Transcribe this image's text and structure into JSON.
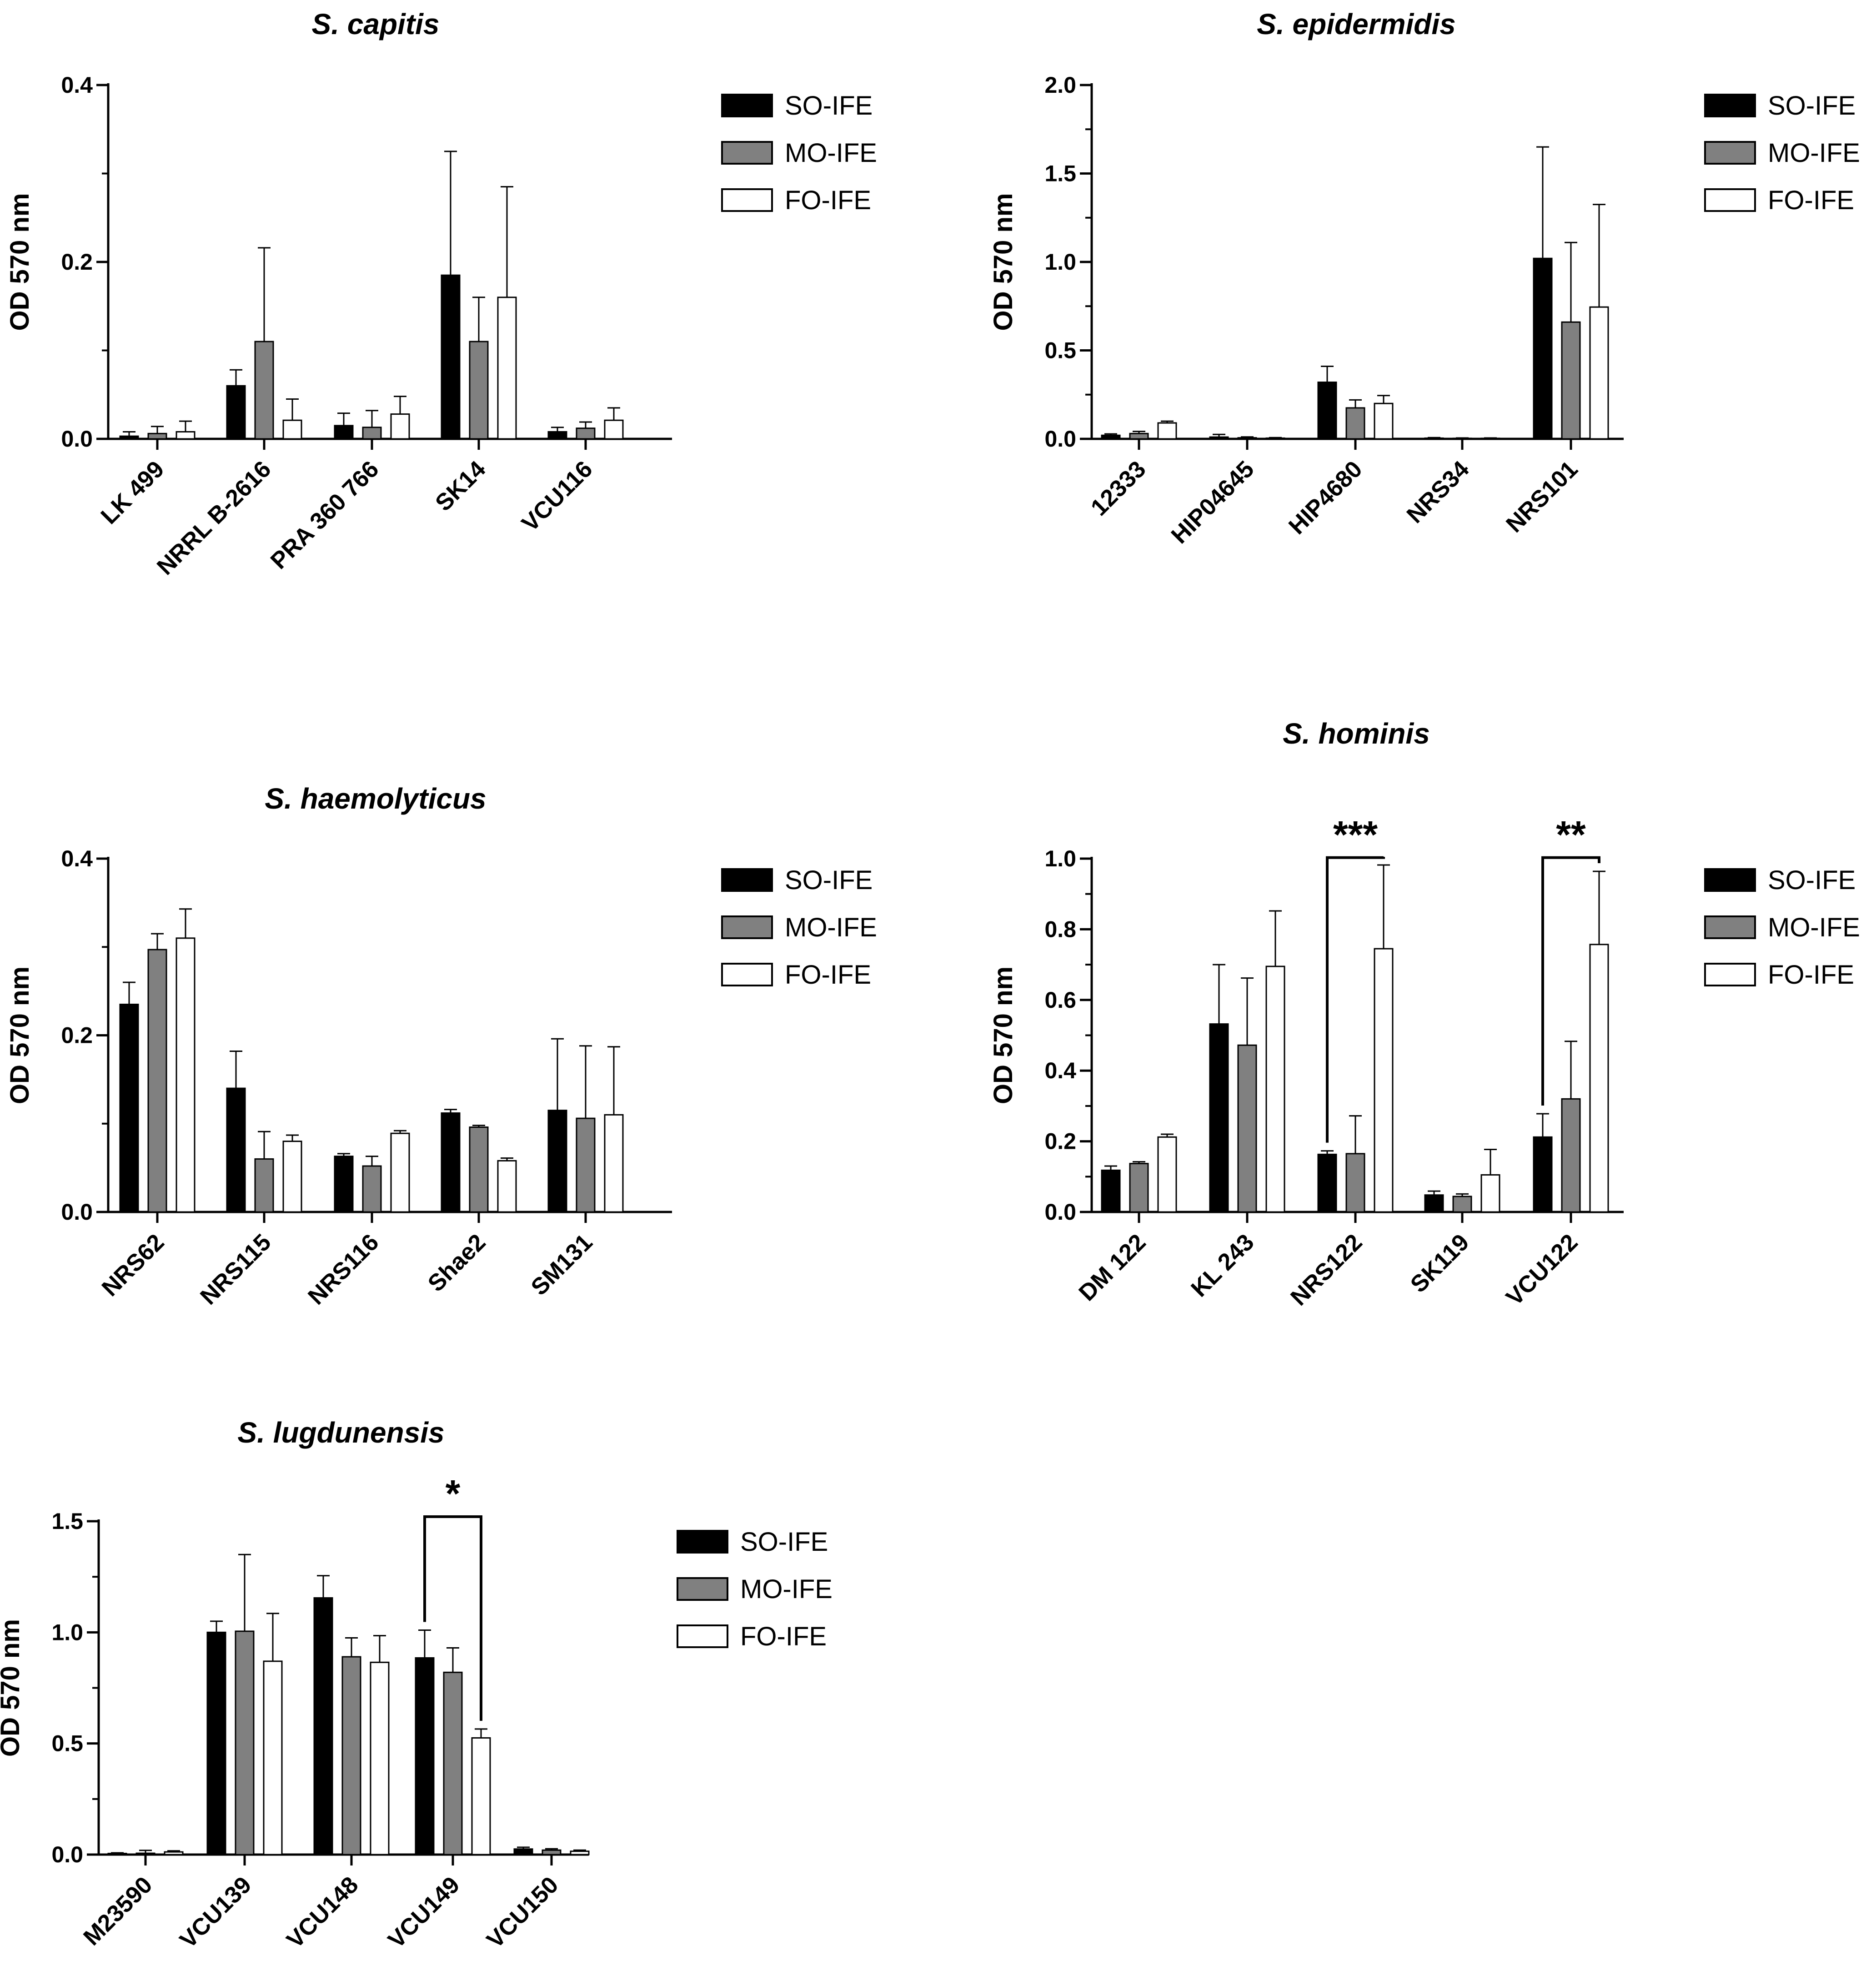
{
  "colors": {
    "SO-IFE": "#000000",
    "MO-IFE": "#808080",
    "FO-IFE": "#ffffff",
    "axis": "#000000"
  },
  "chart_data": [
    {
      "type": "bar",
      "title": "S. capitis",
      "ylabel": "OD 570 nm",
      "ylim": [
        0,
        0.4
      ],
      "yticks": [
        "0.0",
        "0.2",
        "0.4"
      ],
      "categories": [
        "LK 499",
        "NRRL B-2616",
        "PRA 360 766",
        "SK14",
        "VCU116"
      ],
      "series": [
        {
          "name": "SO-IFE",
          "values": [
            0.003,
            0.06,
            0.015,
            0.185,
            0.008
          ],
          "errors": [
            0.005,
            0.018,
            0.014,
            0.14,
            0.005
          ]
        },
        {
          "name": "MO-IFE",
          "values": [
            0.006,
            0.11,
            0.013,
            0.11,
            0.012
          ],
          "errors": [
            0.008,
            0.106,
            0.019,
            0.05,
            0.007
          ]
        },
        {
          "name": "FO-IFE",
          "values": [
            0.008,
            0.021,
            0.028,
            0.16,
            0.021
          ],
          "errors": [
            0.012,
            0.024,
            0.02,
            0.125,
            0.014
          ]
        }
      ],
      "significance": []
    },
    {
      "type": "bar",
      "title": "S. epidermidis",
      "ylabel": "OD 570 nm",
      "ylim": [
        0,
        2.0
      ],
      "yticks": [
        "0.0",
        "0.5",
        "1.0",
        "1.5",
        "2.0"
      ],
      "categories": [
        "12333",
        "HIP04645",
        "HIP4680",
        "NRS34",
        "NRS101"
      ],
      "series": [
        {
          "name": "SO-IFE",
          "values": [
            0.02,
            0.01,
            0.32,
            0.004,
            1.02
          ],
          "errors": [
            0.008,
            0.015,
            0.09,
            0.003,
            0.63
          ]
        },
        {
          "name": "MO-IFE",
          "values": [
            0.03,
            0.006,
            0.175,
            0.003,
            0.66
          ],
          "errors": [
            0.012,
            0.005,
            0.045,
            0.002,
            0.45
          ]
        },
        {
          "name": "FO-IFE",
          "values": [
            0.09,
            0.004,
            0.2,
            0.003,
            0.745
          ],
          "errors": [
            0.01,
            0.003,
            0.045,
            0.002,
            0.58
          ]
        }
      ],
      "significance": []
    },
    {
      "type": "bar",
      "title": "S. haemolyticus",
      "ylabel": "OD 570 nm",
      "ylim": [
        0,
        0.4
      ],
      "yticks": [
        "0.0",
        "0.2",
        "0.4"
      ],
      "categories": [
        "NRS62",
        "NRS115",
        "NRS116",
        "Shae2",
        "SM131"
      ],
      "series": [
        {
          "name": "SO-IFE",
          "values": [
            0.235,
            0.14,
            0.063,
            0.112,
            0.115
          ],
          "errors": [
            0.025,
            0.042,
            0.003,
            0.004,
            0.081
          ]
        },
        {
          "name": "MO-IFE",
          "values": [
            0.297,
            0.06,
            0.052,
            0.096,
            0.106
          ],
          "errors": [
            0.018,
            0.031,
            0.011,
            0.002,
            0.082
          ]
        },
        {
          "name": "FO-IFE",
          "values": [
            0.31,
            0.08,
            0.089,
            0.058,
            0.11
          ],
          "errors": [
            0.033,
            0.007,
            0.003,
            0.003,
            0.077
          ]
        }
      ],
      "significance": []
    },
    {
      "type": "bar",
      "title": "S. hominis",
      "ylabel": "OD 570 nm",
      "ylim": [
        0,
        1.0
      ],
      "yticks": [
        "0.0",
        "0.2",
        "0.4",
        "0.6",
        "0.8",
        "1.0"
      ],
      "categories": [
        "DM 122",
        "KL 243",
        "NRS122",
        "SK119",
        "VCU122"
      ],
      "series": [
        {
          "name": "SO-IFE",
          "values": [
            0.118,
            0.532,
            0.163,
            0.048,
            0.212
          ],
          "errors": [
            0.012,
            0.168,
            0.01,
            0.011,
            0.066
          ]
        },
        {
          "name": "MO-IFE",
          "values": [
            0.137,
            0.472,
            0.165,
            0.044,
            0.32
          ],
          "errors": [
            0.005,
            0.19,
            0.107,
            0.007,
            0.163
          ]
        },
        {
          "name": "FO-IFE",
          "values": [
            0.212,
            0.695,
            0.745,
            0.105,
            0.757
          ],
          "errors": [
            0.008,
            0.157,
            0.237,
            0.072,
            0.207
          ]
        }
      ],
      "significance": [
        {
          "category": "NRS122",
          "from": "SO-IFE",
          "to": "FO-IFE",
          "label": "***",
          "level": 0.99
        },
        {
          "category": "VCU122",
          "from": "SO-IFE",
          "to": "FO-IFE",
          "label": "**",
          "level": 0.99
        }
      ]
    },
    {
      "type": "bar",
      "title": "S. lugdunensis",
      "ylabel": "OD 570 nm",
      "ylim": [
        0,
        1.5
      ],
      "yticks": [
        "0.0",
        "0.5",
        "1.0",
        "1.5"
      ],
      "categories": [
        "M23590",
        "VCU139",
        "VCU148",
        "VCU149",
        "VCU150"
      ],
      "series": [
        {
          "name": "SO-IFE",
          "values": [
            0.005,
            1.0,
            1.155,
            0.885,
            0.025
          ],
          "errors": [
            0.003,
            0.05,
            0.1,
            0.125,
            0.008
          ]
        },
        {
          "name": "MO-IFE",
          "values": [
            0.006,
            1.005,
            0.89,
            0.82,
            0.02
          ],
          "errors": [
            0.013,
            0.345,
            0.085,
            0.11,
            0.006
          ]
        },
        {
          "name": "FO-IFE",
          "values": [
            0.012,
            0.87,
            0.865,
            0.525,
            0.015
          ],
          "errors": [
            0.005,
            0.215,
            0.12,
            0.04,
            0.005
          ]
        }
      ],
      "significance": [
        {
          "category": "VCU149",
          "from": "SO-IFE",
          "to": "FO-IFE",
          "label": "*",
          "level": 1.5
        }
      ]
    }
  ]
}
